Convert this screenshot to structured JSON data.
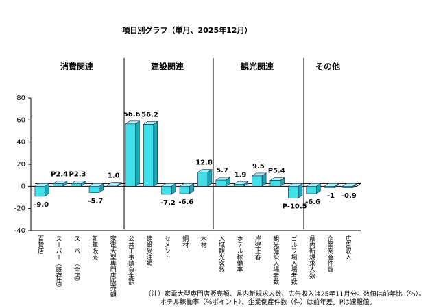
{
  "chart_data": {
    "type": "bar3d",
    "title": "項目別グラフ（単月、2025年12月）",
    "groups": [
      "消費関連",
      "建設関連",
      "観光関連",
      "その他"
    ],
    "categories": [
      "百貨店",
      "スーパー（既存店）",
      "スーパー（全店）",
      "新車販売",
      "家電大型専門店販売額",
      "公共工事請負金額",
      "建設受注額",
      "セメント",
      "鋼材",
      "木材",
      "入域観光客数",
      "ホテル稼働率",
      "岸壁上客",
      "観光施設入場者数",
      "ゴルフ場入場者数",
      "県内新規求人数",
      "企業倒産件数",
      "広告収入"
    ],
    "values": [
      -9.0,
      2.4,
      2.3,
      -5.7,
      1.0,
      56.6,
      56.2,
      -7.2,
      -6.6,
      12.8,
      5.7,
      1.9,
      9.5,
      5.4,
      -10.5,
      -6.6,
      -1,
      -0.9
    ],
    "value_labels": [
      "-9.0",
      "P2.4",
      "P2.3",
      "-5.7",
      "1.0",
      "56.6",
      "56.2",
      "-7.2",
      "-6.6",
      "12.8",
      "5.7",
      "1.9",
      "9.5",
      "P5.4",
      "P-10.5",
      "-6.6",
      "-1",
      "-0.9"
    ],
    "color": "#40e0e8",
    "ylim": [
      -40,
      80
    ],
    "yticks": [
      -40,
      -20,
      0,
      20,
      40,
      60,
      80
    ],
    "notes": [
      "（注）家電大型専門店販売額、県内新規求人数、広告収入は25年11月分。数値は前年比（％）。",
      "ホテル稼働率（％ポイント）、企業倒産件数（件）は前年差。Pは速報値。"
    ]
  }
}
